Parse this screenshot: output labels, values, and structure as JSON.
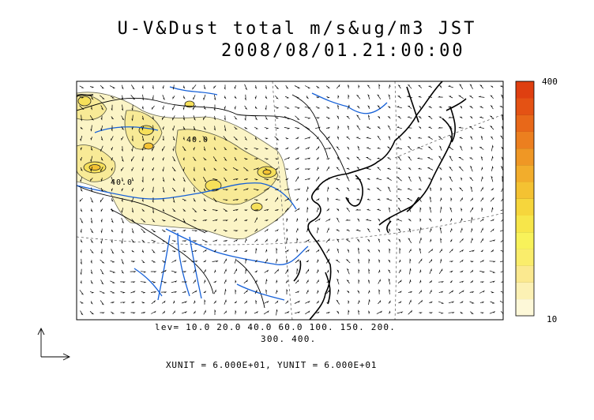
{
  "title": {
    "line1": "U-V&Dust total m/s&ug/m3 JST",
    "line2": "2008/08/01.21:00:00"
  },
  "colorbar": {
    "max_label": "400",
    "min_label": "10",
    "colors": [
      "#fdf8d8",
      "#fcf1b4",
      "#fbe98f",
      "#faed6b",
      "#f8f25a",
      "#f7e64a",
      "#f6d63c",
      "#f4c232",
      "#f2ad2c",
      "#ef9725",
      "#ec7f1f",
      "#e86819",
      "#e45214",
      "#df3f10"
    ]
  },
  "contour_labels": [
    "40.0",
    "40.0"
  ],
  "legend": {
    "levels_line1": "lev= 10.0 20.0 40.0 60.0 100. 150. 200.",
    "levels_line2": "300. 400."
  },
  "units_text": "XUNIT = 6.000E+01, YUNIT = 6.000E+01",
  "colors": {
    "coast": "#000000",
    "river": "#1560d8",
    "dust_light": "#fbf4c6",
    "dust_mid": "#f8ea96"
  }
}
